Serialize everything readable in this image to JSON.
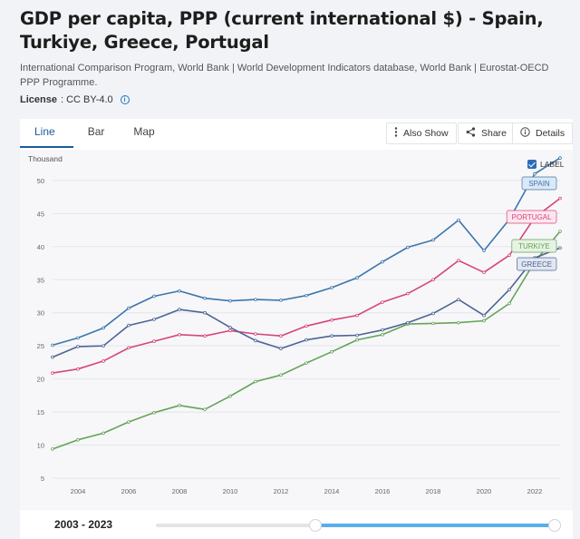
{
  "header": {
    "title": "GDP per capita, PPP (current international $) - Spain, Turkiye, Greece, Portugal",
    "source": "International Comparison Program, World Bank | World Development Indicators database, World Bank | Eurostat-OECD PPP Programme.",
    "license_label": "License",
    "license_value": ": CC BY-4.0"
  },
  "tabs": [
    {
      "label": "Line"
    },
    {
      "label": "Bar"
    },
    {
      "label": "Map"
    }
  ],
  "toolbar": {
    "also_show": "Also Show",
    "share": "Share",
    "details": "Details"
  },
  "range": {
    "label": "2003 - 2023",
    "start_fraction": 0.4,
    "end_fraction": 1.0
  },
  "chart_data": {
    "type": "line",
    "y_unit_label": "Thousand",
    "label_toggle": "LABEL",
    "x": [
      2003,
      2004,
      2005,
      2006,
      2007,
      2008,
      2009,
      2010,
      2011,
      2012,
      2013,
      2014,
      2015,
      2016,
      2017,
      2018,
      2019,
      2020,
      2021,
      2022,
      2023
    ],
    "x_ticks": [
      "2004",
      "2006",
      "2008",
      "2010",
      "2012",
      "2014",
      "2016",
      "2018",
      "2020",
      "2022"
    ],
    "y_ticks": [
      "5",
      "10",
      "15",
      "20",
      "25",
      "30",
      "35",
      "40",
      "45",
      "50"
    ],
    "ylim": [
      5,
      53
    ],
    "grid": true,
    "series": [
      {
        "name": "SPAIN",
        "color": "#3c76ad",
        "values": [
          25.1,
          26.2,
          27.7,
          30.7,
          32.5,
          33.3,
          32.2,
          31.8,
          32.0,
          31.9,
          32.6,
          33.8,
          35.3,
          37.7,
          39.9,
          41.0,
          44.0,
          39.4,
          44.1,
          51.0,
          53.4
        ]
      },
      {
        "name": "PORTUGAL",
        "color": "#d6457d",
        "values": [
          20.9,
          21.5,
          22.7,
          24.7,
          25.7,
          26.7,
          26.5,
          27.3,
          26.8,
          26.5,
          28.0,
          28.9,
          29.6,
          31.6,
          32.9,
          35.0,
          37.9,
          36.1,
          38.7,
          44.4,
          47.3
        ]
      },
      {
        "name": "TURKIYE",
        "color": "#66a35a",
        "values": [
          9.4,
          10.8,
          11.8,
          13.5,
          14.9,
          16.0,
          15.4,
          17.4,
          19.6,
          20.6,
          22.4,
          24.1,
          25.9,
          26.7,
          28.3,
          28.4,
          28.5,
          28.8,
          31.4,
          37.7,
          42.3
        ]
      },
      {
        "name": "GREECE",
        "color": "#4e6595",
        "values": [
          23.3,
          24.9,
          25.0,
          28.1,
          29.0,
          30.5,
          30.0,
          27.8,
          25.8,
          24.6,
          25.9,
          26.5,
          26.6,
          27.4,
          28.5,
          29.9,
          32.0,
          29.6,
          33.5,
          38.3,
          39.8
        ]
      }
    ]
  }
}
